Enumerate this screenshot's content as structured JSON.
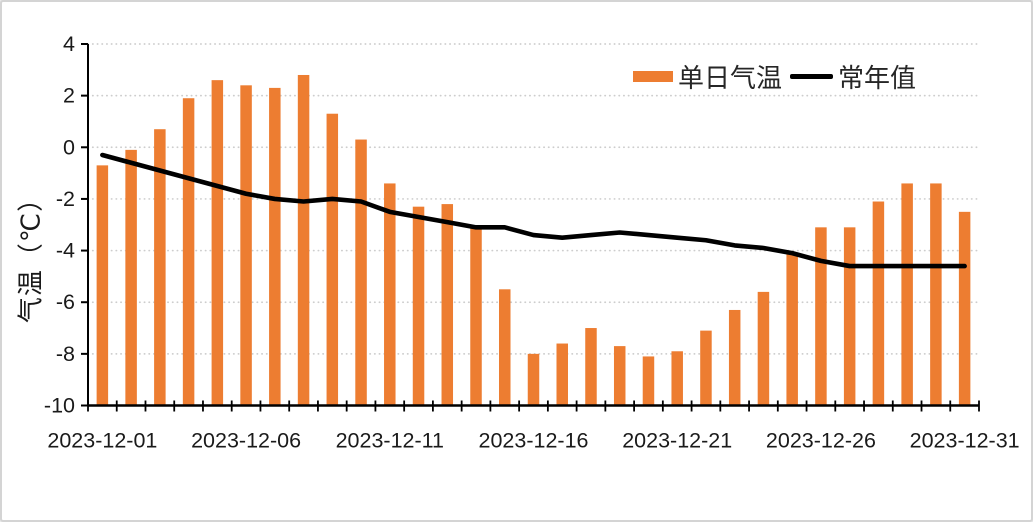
{
  "chart_data": {
    "type": "bar+line",
    "title": "",
    "xlabel": "",
    "ylabel": "气温（℃）",
    "ylim": [
      -10,
      4
    ],
    "y_ticks": [
      4,
      2,
      0,
      -2,
      -4,
      -6,
      -8,
      -10
    ],
    "grid": "horizontal-dotted",
    "legend_position": "top-right-inside",
    "bars_base": -10,
    "categories": [
      "2023-12-01",
      "2023-12-02",
      "2023-12-03",
      "2023-12-04",
      "2023-12-05",
      "2023-12-06",
      "2023-12-07",
      "2023-12-08",
      "2023-12-09",
      "2023-12-10",
      "2023-12-11",
      "2023-12-12",
      "2023-12-13",
      "2023-12-14",
      "2023-12-15",
      "2023-12-16",
      "2023-12-17",
      "2023-12-18",
      "2023-12-19",
      "2023-12-20",
      "2023-12-21",
      "2023-12-22",
      "2023-12-23",
      "2023-12-24",
      "2023-12-25",
      "2023-12-26",
      "2023-12-27",
      "2023-12-28",
      "2023-12-29",
      "2023-12-30",
      "2023-12-31"
    ],
    "x_tick_labels": [
      "2023-12-01",
      "2023-12-06",
      "2023-12-11",
      "2023-12-16",
      "2023-12-21",
      "2023-12-26",
      "2023-12-31"
    ],
    "series": [
      {
        "name": "单日气温",
        "type": "bar",
        "color": "#ED7D31",
        "values": [
          -0.7,
          -0.1,
          0.7,
          1.9,
          2.6,
          2.4,
          2.3,
          2.8,
          1.3,
          0.3,
          -1.4,
          -2.3,
          -2.2,
          -3.1,
          -5.5,
          -8.0,
          -7.6,
          -7.0,
          -7.7,
          -8.1,
          -7.9,
          -7.1,
          -6.3,
          -5.6,
          -4.1,
          -3.1,
          -3.1,
          -2.1,
          -1.4,
          -1.4,
          -2.5
        ]
      },
      {
        "name": "常年值",
        "type": "line",
        "color": "#000000",
        "values": [
          -0.3,
          -0.6,
          -0.9,
          -1.2,
          -1.5,
          -1.8,
          -2.0,
          -2.1,
          -2.0,
          -2.1,
          -2.5,
          -2.7,
          -2.9,
          -3.1,
          -3.1,
          -3.4,
          -3.5,
          -3.4,
          -3.3,
          -3.4,
          -3.5,
          -3.6,
          -3.8,
          -3.9,
          -4.1,
          -4.4,
          -4.6,
          -4.6,
          -4.6,
          -4.6,
          -4.6
        ]
      }
    ]
  },
  "colors": {
    "gridline": "#CDCDCD",
    "axis": "#000000",
    "tick_label": "#1A1A1A",
    "frame_border": "#D4D4D4",
    "background": "#FFFFFF"
  }
}
